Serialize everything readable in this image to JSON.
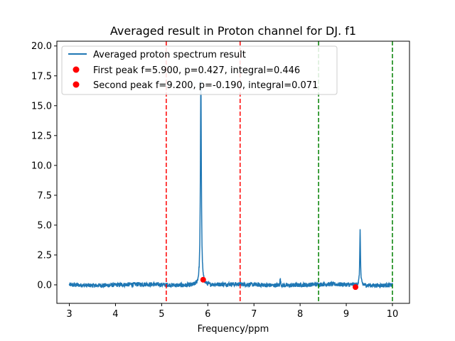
{
  "chart_data": {
    "type": "line",
    "title": "Averaged result in Proton channel for DJ. f1",
    "xlabel": "Frequency/ppm",
    "ylabel": "",
    "xlim": [
      2.73,
      10.37
    ],
    "ylim": [
      -1.55,
      20.4
    ],
    "xticks": [
      "3",
      "4",
      "5",
      "6",
      "7",
      "8",
      "9",
      "10"
    ],
    "yticks": [
      "0.0",
      "2.5",
      "5.0",
      "7.5",
      "10.0",
      "12.5",
      "15.0",
      "17.5",
      "20.0"
    ],
    "grid": false,
    "legend_position": "top-left",
    "series": [
      {
        "name": "Averaged proton spectrum result",
        "color": "#1f77b4",
        "baseline_range": [
          3.0,
          10.0
        ],
        "baseline_noise": 0.18,
        "peaks": [
          {
            "x": 5.85,
            "y": 17.6
          },
          {
            "x": 9.3,
            "y": 4.7
          },
          {
            "x": 7.57,
            "y": 0.5
          }
        ]
      }
    ],
    "markers": [
      {
        "name": "First peak f=5.900, p=0.427, integral=0.446",
        "x": 5.9,
        "y": 0.427,
        "color": "#ff0000"
      },
      {
        "name": "Second peak f=9.200, p=-0.190, integral=0.071",
        "x": 9.2,
        "y": -0.19,
        "color": "#ff0000"
      }
    ],
    "vlines": [
      {
        "x": 5.1,
        "color": "#ff0000",
        "style": "dashed"
      },
      {
        "x": 6.7,
        "color": "#ff0000",
        "style": "dashed"
      },
      {
        "x": 8.4,
        "color": "#008000",
        "style": "dashed"
      },
      {
        "x": 10.0,
        "color": "#008000",
        "style": "dashed"
      }
    ]
  }
}
